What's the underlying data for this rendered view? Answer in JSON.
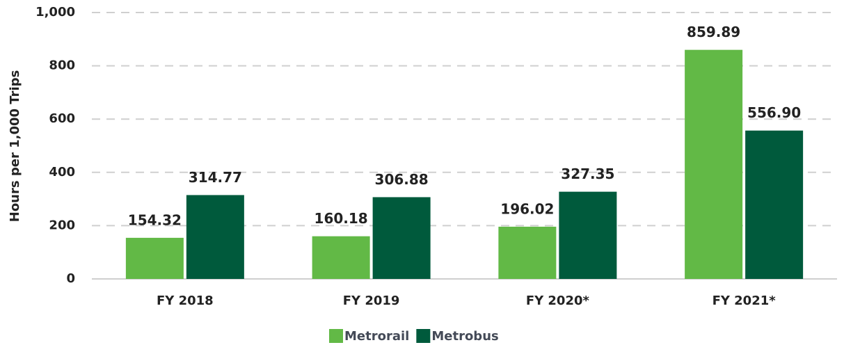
{
  "chart_data": {
    "type": "bar",
    "ylabel": "Hours per 1,000 Trips",
    "categories": [
      "FY 2018",
      "FY 2019",
      "FY 2020*",
      "FY 2021*"
    ],
    "series": [
      {
        "name": "Metrorail",
        "color": "#62b946",
        "values": [
          154.32,
          160.18,
          196.02,
          859.89
        ],
        "value_labels": [
          "154.32",
          "160.18",
          "196.02",
          "859.89"
        ]
      },
      {
        "name": "Metrobus",
        "color": "#005a3c",
        "values": [
          314.77,
          306.88,
          327.35,
          556.9
        ],
        "value_labels": [
          "314.77",
          "306.88",
          "327.35",
          "556.90"
        ]
      }
    ],
    "ylim": [
      0,
      1000
    ],
    "yticks": [
      0,
      200,
      400,
      600,
      800,
      {
        "value": 1000,
        "label": "1,000"
      }
    ],
    "grid": true,
    "legend": "bottom"
  }
}
